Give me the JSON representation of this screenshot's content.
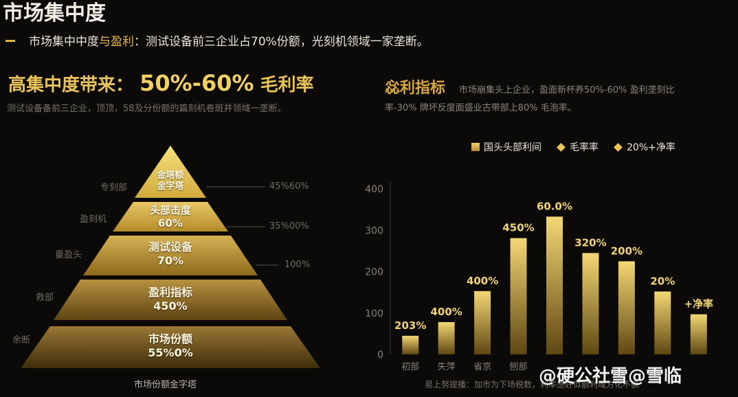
{
  "header": {
    "title": "市场集中度",
    "subtitle_prefix": "市场集中中度",
    "subtitle_highlight": "与盈利",
    "subtitle_rest": "：测试设备前三企业占70%份额，光刻机领域一家垄断。"
  },
  "left": {
    "heading_label": "高集中度带来：",
    "heading_value": "50%-60%",
    "heading_suffix": "毛利率",
    "desc": "测试设备备前三企业，顶顶，58及分份额的篇刻机卷斑并领域一垄断。",
    "pyramid": {
      "caption": "市场份额金字塔",
      "tiers": [
        {
          "line1": "金塔额",
          "line2": "金字塔",
          "left_label": "专刻部",
          "right_label": "45%60%"
        },
        {
          "line1": "头部击度",
          "line2": "60%",
          "left_label": "盈刻机",
          "right_label": "35%00%"
        },
        {
          "line1": "测试设备",
          "line2": "70%",
          "left_label": "量盈头",
          "right_label": "100%"
        },
        {
          "line1": "盈利指标",
          "line2": "450%",
          "left_label": "救部",
          "right_label": ""
        },
        {
          "line1": "市场份额",
          "line2": "55%0%",
          "left_label": "余断",
          "right_label": ""
        }
      ]
    }
  },
  "right": {
    "heading": "惢利指标",
    "desc_line1": "市场崩集头上企业，盈面新杯养50%-60%  盈利垄刻比",
    "desc_line2": "率-30% 牌坏反度面盛业古带部上80% 毛泡率。",
    "legend": [
      "国头头部利间",
      "毛率率",
      "20%+净率"
    ],
    "note": "易上努提播：加市为下场税数，利率想好似额利域方化不额",
    "watermark": "@硬公社雪@雪临"
  },
  "chart_data": {
    "type": "bar",
    "categories": [
      "初部",
      "失萍",
      "省京",
      "刨部",
      "",
      "",
      "",
      "",
      ""
    ],
    "values": [
      45,
      78,
      153,
      281,
      333,
      245,
      225,
      152,
      97
    ],
    "data_labels": [
      "203%",
      "400%",
      "400%",
      "450%",
      "60.0%",
      "320%",
      "200%",
      "20%",
      "+净率"
    ],
    "ylim": [
      0,
      400
    ],
    "yticks": [
      0,
      100,
      200,
      300,
      400
    ],
    "grid": false,
    "legend_position": "top",
    "colors": {
      "bar_top": "#f4d774",
      "bar_bottom": "#5e4712"
    }
  }
}
